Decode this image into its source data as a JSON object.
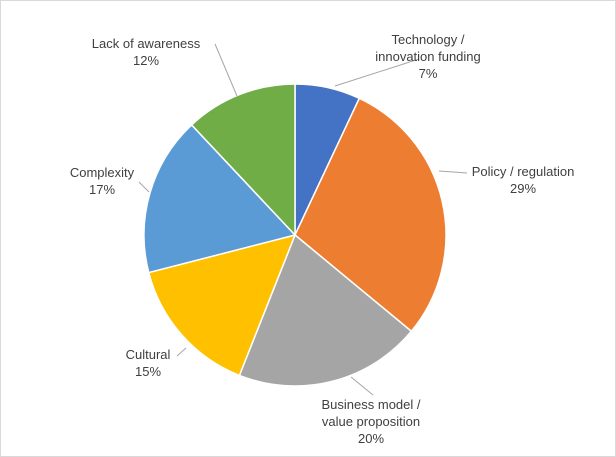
{
  "chart_data": {
    "type": "pie",
    "title": "",
    "slices": [
      {
        "label": "Technology / innovation funding",
        "label_lines": [
          "Technology /",
          "innovation funding"
        ],
        "value": 7,
        "value_label": "7%",
        "color": "#4472c4"
      },
      {
        "label": "Policy / regulation",
        "label_lines": [
          "Policy / regulation"
        ],
        "value": 29,
        "value_label": "29%",
        "color": "#ed7d31"
      },
      {
        "label": "Business model / value proposition",
        "label_lines": [
          "Business model /",
          "value proposition"
        ],
        "value": 20,
        "value_label": "20%",
        "color": "#a5a5a5"
      },
      {
        "label": "Cultural",
        "label_lines": [
          "Cultural"
        ],
        "value": 15,
        "value_label": "15%",
        "color": "#ffc000"
      },
      {
        "label": "Complexity",
        "label_lines": [
          "Complexity"
        ],
        "value": 17,
        "value_label": "17%",
        "color": "#5b9bd5"
      },
      {
        "label": "Lack of awareness",
        "label_lines": [
          "Lack of awareness"
        ],
        "value": 12,
        "value_label": "12%",
        "color": "#70ad47"
      }
    ],
    "start_angle_deg": 0,
    "direction": "clockwise",
    "labels": "outside-with-leader-lines",
    "legend": "none"
  }
}
